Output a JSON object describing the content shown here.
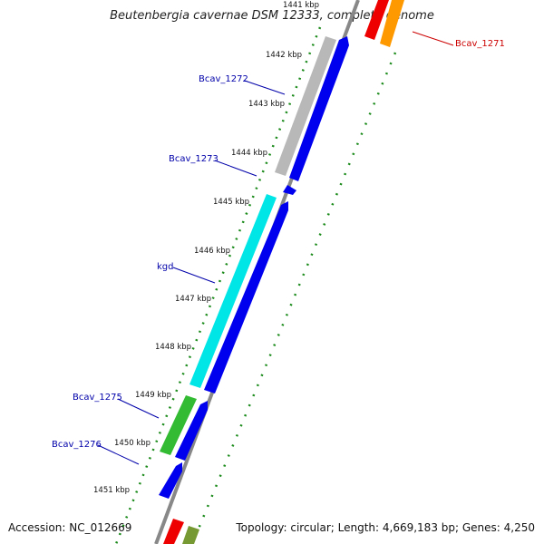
{
  "title": "Beutenbergia cavernae DSM 12333, complete genome",
  "footer": {
    "accession": "Accession: NC_012669",
    "topology": "Topology: circular; Length: 4,669,183 bp; Genes: 4,250"
  },
  "ticks": [
    "1441 kbp",
    "1442 kbp",
    "1443 kbp",
    "1444 kbp",
    "1445 kbp",
    "1446 kbp",
    "1447 kbp",
    "1448 kbp",
    "1449 kbp",
    "1450 kbp",
    "1451 kbp"
  ],
  "genes": [
    {
      "name": "Bcav_1271",
      "color": "#cc0000"
    },
    {
      "name": "Bcav_1272",
      "color": "#0000aa"
    },
    {
      "name": "Bcav_1273",
      "color": "#0000aa"
    },
    {
      "name": "kgd",
      "color": "#0000aa"
    },
    {
      "name": "Bcav_1275",
      "color": "#0000aa"
    },
    {
      "name": "Bcav_1276",
      "color": "#0000aa"
    }
  ],
  "colors": {
    "cds": "#0000ee",
    "gray_feature": "#b8b8b8",
    "cyan_feature": "#00e5e5",
    "green_feature": "#33bb33",
    "red_feature": "#ee0000",
    "orange_feature": "#ff9900",
    "olive_feature": "#779933",
    "backbone": "#888888",
    "dots": "#1a8a1a"
  }
}
